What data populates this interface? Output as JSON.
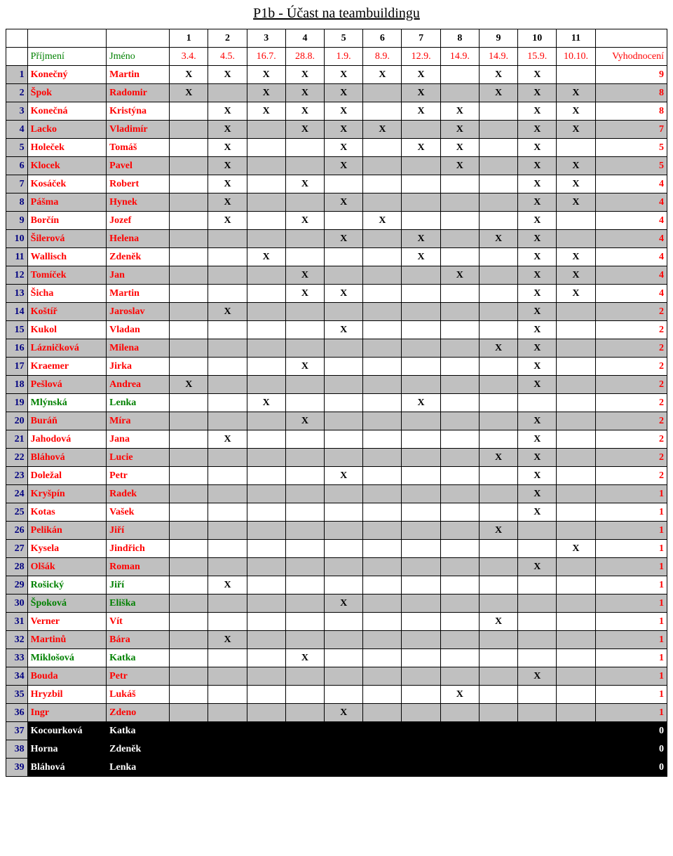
{
  "title": "P1b - Účast na teambuildingu",
  "header": {
    "nums": [
      "1",
      "2",
      "3",
      "4",
      "5",
      "6",
      "7",
      "8",
      "9",
      "10",
      "11"
    ],
    "surname_label": "Příjmení",
    "first_label": "Jméno",
    "dates": [
      "3.4.",
      "4.5.",
      "16.7.",
      "28.8.",
      "1.9.",
      "8.9.",
      "12.9.",
      "14.9.",
      "14.9.",
      "15.9.",
      "10.10."
    ],
    "eval_label": "Vyhodnocení"
  },
  "colors": {
    "red": "#ff0000",
    "green": "#008000",
    "navy": "#000080",
    "gray": "#c0c0c0",
    "black": "#000000",
    "white": "#ffffff"
  },
  "rows": [
    {
      "n": 1,
      "surname": "Konečný",
      "first": "Martin",
      "name_color": "red",
      "row_bg": "white",
      "marks": [
        "X",
        "X",
        "X",
        "X",
        "X",
        "X",
        "X",
        "",
        "X",
        "X",
        ""
      ],
      "eval": 9,
      "eval_color": "red"
    },
    {
      "n": 2,
      "surname": "Špok",
      "first": "Radomir",
      "name_color": "red",
      "row_bg": "gray",
      "marks": [
        "X",
        "",
        "X",
        "X",
        "X",
        "",
        "X",
        "",
        "X",
        "X",
        "X"
      ],
      "eval": 8,
      "eval_color": "red"
    },
    {
      "n": 3,
      "surname": "Konečná",
      "first": "Kristýna",
      "name_color": "red",
      "row_bg": "white",
      "marks": [
        "",
        "X",
        "X",
        "X",
        "X",
        "",
        "X",
        "X",
        "",
        "X",
        "X"
      ],
      "eval": 8,
      "eval_color": "red"
    },
    {
      "n": 4,
      "surname": "Lacko",
      "first": "Vladimír",
      "name_color": "red",
      "row_bg": "gray",
      "marks": [
        "",
        "X",
        "",
        "X",
        "X",
        "X",
        "",
        "X",
        "",
        "X",
        "X"
      ],
      "eval": 7,
      "eval_color": "red"
    },
    {
      "n": 5,
      "surname": "Holeček",
      "first": "Tomáš",
      "name_color": "red",
      "row_bg": "white",
      "marks": [
        "",
        "X",
        "",
        "",
        "X",
        "",
        "X",
        "X",
        "",
        "X",
        ""
      ],
      "eval": 5,
      "eval_color": "red"
    },
    {
      "n": 6,
      "surname": "Klocek",
      "first": "Pavel",
      "name_color": "red",
      "row_bg": "gray",
      "marks": [
        "",
        "X",
        "",
        "",
        "X",
        "",
        "",
        "X",
        "",
        "X",
        "X"
      ],
      "eval": 5,
      "eval_color": "red"
    },
    {
      "n": 7,
      "surname": "Kosáček",
      "first": "Robert",
      "name_color": "red",
      "row_bg": "white",
      "marks": [
        "",
        "X",
        "",
        "X",
        "",
        "",
        "",
        "",
        "",
        "X",
        "X"
      ],
      "eval": 4,
      "eval_color": "red"
    },
    {
      "n": 8,
      "surname": "Pášma",
      "first": "Hynek",
      "name_color": "red",
      "row_bg": "gray",
      "marks": [
        "",
        "X",
        "",
        "",
        "X",
        "",
        "",
        "",
        "",
        "X",
        "X"
      ],
      "eval": 4,
      "eval_color": "red"
    },
    {
      "n": 9,
      "surname": "Borčín",
      "first": "Jozef",
      "name_color": "red",
      "row_bg": "white",
      "marks": [
        "",
        "X",
        "",
        "X",
        "",
        "X",
        "",
        "",
        "",
        "X",
        ""
      ],
      "eval": 4,
      "eval_color": "red"
    },
    {
      "n": 10,
      "surname": "Šilerová",
      "first": "Helena",
      "name_color": "red",
      "row_bg": "gray",
      "marks": [
        "",
        "",
        "",
        "",
        "X",
        "",
        "X",
        "",
        "X",
        "X",
        ""
      ],
      "eval": 4,
      "eval_color": "red"
    },
    {
      "n": 11,
      "surname": "Wallisch",
      "first": "Zdeněk",
      "name_color": "red",
      "row_bg": "white",
      "marks": [
        "",
        "",
        "X",
        "",
        "",
        "",
        "X",
        "",
        "",
        "X",
        "X"
      ],
      "eval": 4,
      "eval_color": "red"
    },
    {
      "n": 12,
      "surname": "Tomíček",
      "first": "Jan",
      "name_color": "red",
      "row_bg": "gray",
      "marks": [
        "",
        "",
        "",
        "X",
        "",
        "",
        "",
        "X",
        "",
        "X",
        "X"
      ],
      "eval": 4,
      "eval_color": "red"
    },
    {
      "n": 13,
      "surname": "Šicha",
      "first": "Martin",
      "name_color": "red",
      "row_bg": "white",
      "marks": [
        "",
        "",
        "",
        "X",
        "X",
        "",
        "",
        "",
        "",
        "X",
        "X"
      ],
      "eval": 4,
      "eval_color": "red"
    },
    {
      "n": 14,
      "surname": "Koštíř",
      "first": "Jaroslav",
      "name_color": "red",
      "row_bg": "gray",
      "marks": [
        "",
        "X",
        "",
        "",
        "",
        "",
        "",
        "",
        "",
        "X",
        ""
      ],
      "eval": 2,
      "eval_color": "red"
    },
    {
      "n": 15,
      "surname": "Kukol",
      "first": "Vladan",
      "name_color": "red",
      "row_bg": "white",
      "marks": [
        "",
        "",
        "",
        "",
        "X",
        "",
        "",
        "",
        "",
        "X",
        ""
      ],
      "eval": 2,
      "eval_color": "red"
    },
    {
      "n": 16,
      "surname": "Lázničková",
      "first": "Milena",
      "name_color": "red",
      "row_bg": "gray",
      "marks": [
        "",
        "",
        "",
        "",
        "",
        "",
        "",
        "",
        "X",
        "X",
        ""
      ],
      "eval": 2,
      "eval_color": "red"
    },
    {
      "n": 17,
      "surname": "Kraemer",
      "first": "Jirka",
      "name_color": "red",
      "row_bg": "white",
      "marks": [
        "",
        "",
        "",
        "X",
        "",
        "",
        "",
        "",
        "",
        "X",
        ""
      ],
      "eval": 2,
      "eval_color": "red"
    },
    {
      "n": 18,
      "surname": "Pešlová",
      "first": "Andrea",
      "name_color": "red",
      "row_bg": "gray",
      "marks": [
        "X",
        "",
        "",
        "",
        "",
        "",
        "",
        "",
        "",
        "X",
        ""
      ],
      "eval": 2,
      "eval_color": "red"
    },
    {
      "n": 19,
      "surname": "Mlýnská",
      "first": "Lenka",
      "name_color": "green",
      "row_bg": "white",
      "marks": [
        "",
        "",
        "X",
        "",
        "",
        "",
        "X",
        "",
        "",
        "",
        ""
      ],
      "eval": 2,
      "eval_color": "red"
    },
    {
      "n": 20,
      "surname": "Buráň",
      "first": "Míra",
      "name_color": "red",
      "row_bg": "gray",
      "marks": [
        "",
        "",
        "",
        "X",
        "",
        "",
        "",
        "",
        "",
        "X",
        ""
      ],
      "eval": 2,
      "eval_color": "red"
    },
    {
      "n": 21,
      "surname": "Jahodová",
      "first": "Jana",
      "name_color": "red",
      "row_bg": "white",
      "marks": [
        "",
        "X",
        "",
        "",
        "",
        "",
        "",
        "",
        "",
        "X",
        ""
      ],
      "eval": 2,
      "eval_color": "red"
    },
    {
      "n": 22,
      "surname": "Bláhová",
      "first": "Lucie",
      "name_color": "red",
      "row_bg": "gray",
      "marks": [
        "",
        "",
        "",
        "",
        "",
        "",
        "",
        "",
        "X",
        "X",
        ""
      ],
      "eval": 2,
      "eval_color": "red"
    },
    {
      "n": 23,
      "surname": "Doležal",
      "first": "Petr",
      "name_color": "red",
      "row_bg": "white",
      "marks": [
        "",
        "",
        "",
        "",
        "X",
        "",
        "",
        "",
        "",
        "X",
        ""
      ],
      "eval": 2,
      "eval_color": "red"
    },
    {
      "n": 24,
      "surname": "Kryšpín",
      "first": "Radek",
      "name_color": "red",
      "row_bg": "gray",
      "marks": [
        "",
        "",
        "",
        "",
        "",
        "",
        "",
        "",
        "",
        "X",
        ""
      ],
      "eval": 1,
      "eval_color": "red"
    },
    {
      "n": 25,
      "surname": "Kotas",
      "first": "Vašek",
      "name_color": "red",
      "row_bg": "white",
      "marks": [
        "",
        "",
        "",
        "",
        "",
        "",
        "",
        "",
        "",
        "X",
        ""
      ],
      "eval": 1,
      "eval_color": "red"
    },
    {
      "n": 26,
      "surname": "Pelikán",
      "first": "Jiří",
      "name_color": "red",
      "row_bg": "gray",
      "marks": [
        "",
        "",
        "",
        "",
        "",
        "",
        "",
        "",
        "X",
        "",
        ""
      ],
      "eval": 1,
      "eval_color": "red"
    },
    {
      "n": 27,
      "surname": "Kysela",
      "first": "Jindřich",
      "name_color": "red",
      "row_bg": "white",
      "marks": [
        "",
        "",
        "",
        "",
        "",
        "",
        "",
        "",
        "",
        "",
        "X"
      ],
      "eval": 1,
      "eval_color": "red"
    },
    {
      "n": 28,
      "surname": "Olšák",
      "first": "Roman",
      "name_color": "red",
      "row_bg": "gray",
      "marks": [
        "",
        "",
        "",
        "",
        "",
        "",
        "",
        "",
        "",
        "X",
        ""
      ],
      "eval": 1,
      "eval_color": "red"
    },
    {
      "n": 29,
      "surname": "Rošický",
      "first": "Jiří",
      "name_color": "green",
      "row_bg": "white",
      "marks": [
        "",
        "X",
        "",
        "",
        "",
        "",
        "",
        "",
        "",
        "",
        ""
      ],
      "eval": 1,
      "eval_color": "red"
    },
    {
      "n": 30,
      "surname": "Špoková",
      "first": "Eliška",
      "name_color": "green",
      "row_bg": "gray",
      "marks": [
        "",
        "",
        "",
        "",
        "X",
        "",
        "",
        "",
        "",
        "",
        ""
      ],
      "eval": 1,
      "eval_color": "red"
    },
    {
      "n": 31,
      "surname": "Verner",
      "first": "Vít",
      "name_color": "red",
      "row_bg": "white",
      "marks": [
        "",
        "",
        "",
        "",
        "",
        "",
        "",
        "",
        "X",
        "",
        ""
      ],
      "eval": 1,
      "eval_color": "red"
    },
    {
      "n": 32,
      "surname": "Martinů",
      "first": "Bára",
      "name_color": "red",
      "row_bg": "gray",
      "marks": [
        "",
        "X",
        "",
        "",
        "",
        "",
        "",
        "",
        "",
        "",
        ""
      ],
      "eval": 1,
      "eval_color": "red"
    },
    {
      "n": 33,
      "surname": "Miklošová",
      "first": "Katka",
      "name_color": "green",
      "row_bg": "white",
      "marks": [
        "",
        "",
        "",
        "X",
        "",
        "",
        "",
        "",
        "",
        "",
        ""
      ],
      "eval": 1,
      "eval_color": "red"
    },
    {
      "n": 34,
      "surname": "Bouda",
      "first": "Petr",
      "name_color": "red",
      "row_bg": "gray",
      "marks": [
        "",
        "",
        "",
        "",
        "",
        "",
        "",
        "",
        "",
        "X",
        ""
      ],
      "eval": 1,
      "eval_color": "red"
    },
    {
      "n": 35,
      "surname": "Hryzbil",
      "first": "Lukáš",
      "name_color": "red",
      "row_bg": "white",
      "marks": [
        "",
        "",
        "",
        "",
        "",
        "",
        "",
        "X",
        "",
        "",
        ""
      ],
      "eval": 1,
      "eval_color": "red"
    },
    {
      "n": 36,
      "surname": "Ingr",
      "first": "Zdeno",
      "name_color": "red",
      "row_bg": "gray",
      "marks": [
        "",
        "",
        "",
        "",
        "X",
        "",
        "",
        "",
        "",
        "",
        ""
      ],
      "eval": 1,
      "eval_color": "red"
    },
    {
      "n": 37,
      "surname": "Kocourková",
      "first": "Katka",
      "name_color": "white",
      "row_bg": "black",
      "marks": [
        "",
        "",
        "",
        "",
        "",
        "",
        "",
        "",
        "",
        "",
        ""
      ],
      "eval": 0,
      "eval_color": "white"
    },
    {
      "n": 38,
      "surname": "Horna",
      "first": "Zdeněk",
      "name_color": "white",
      "row_bg": "black",
      "marks": [
        "",
        "",
        "",
        "",
        "",
        "",
        "",
        "",
        "",
        "",
        ""
      ],
      "eval": 0,
      "eval_color": "white"
    },
    {
      "n": 39,
      "surname": "Bláhová",
      "first": "Lenka",
      "name_color": "white",
      "row_bg": "black",
      "marks": [
        "",
        "",
        "",
        "",
        "",
        "",
        "",
        "",
        "",
        "",
        ""
      ],
      "eval": 0,
      "eval_color": "white"
    }
  ]
}
